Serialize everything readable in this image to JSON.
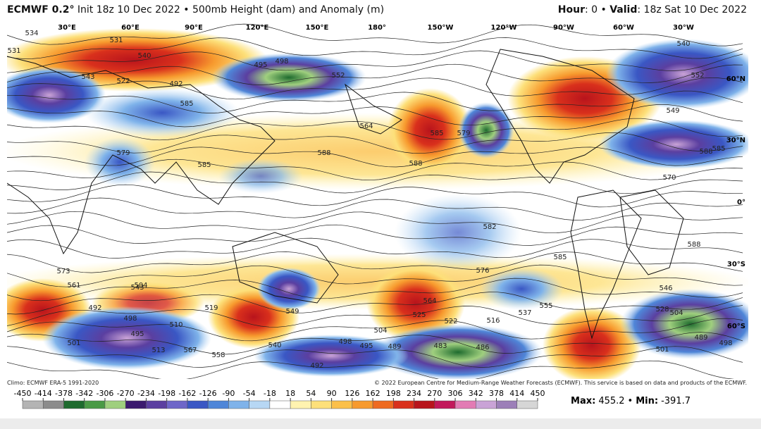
{
  "header": {
    "model": "ECMWF 0.2°",
    "description": "Init 18z 10 Dec 2022 • 500mb Height (dam) and Anomaly (m)",
    "hour_label": "Hour",
    "hour_value": ": 0 •",
    "valid_label": "Valid",
    "valid_value": ": 18z Sat 10 Dec 2022"
  },
  "map": {
    "longitude_labels": [
      "30°E",
      "60°E",
      "90°E",
      "120°E",
      "150°E",
      "180°",
      "150°W",
      "120°W",
      "90°W",
      "60°W",
      "30°W"
    ],
    "latitude_labels": [
      "60°N",
      "30°N",
      "0°",
      "30°S",
      "60°S"
    ],
    "contour_labels": [
      "534",
      "531",
      "540",
      "531",
      "543",
      "522",
      "492",
      "495",
      "498",
      "552",
      "585",
      "588",
      "564",
      "579",
      "585",
      "540",
      "552",
      "549",
      "564",
      "567",
      "570",
      "588",
      "585",
      "588",
      "585",
      "579",
      "573",
      "561",
      "543",
      "519",
      "504",
      "492",
      "498",
      "495",
      "501",
      "513",
      "510",
      "558",
      "540",
      "549",
      "525",
      "504",
      "498",
      "495",
      "489",
      "483",
      "486",
      "516",
      "522",
      "537",
      "555",
      "585",
      "576",
      "546",
      "528",
      "504",
      "489",
      "501",
      "498",
      "492",
      "582",
      "588"
    ]
  },
  "footer": {
    "climo": "Climo: ECMWF ERA-5 1991-2020",
    "copyright": "© 2022 European Centre for Medium-Range Weather Forecasts (ECMWF). This service is based on data and products of the ECMWF."
  },
  "colorbar": {
    "ticks": [
      -450,
      -414,
      -378,
      -342,
      -306,
      -270,
      -234,
      -198,
      -162,
      -126,
      -90,
      -54,
      -18,
      18,
      54,
      90,
      126,
      162,
      198,
      234,
      270,
      306,
      342,
      378,
      414,
      450
    ],
    "colors": [
      "#b4b4b4",
      "#8c8c8c",
      "#1e6b2e",
      "#4a9a46",
      "#9fcf7e",
      "#3b1a6e",
      "#5b3fa0",
      "#6e66c8",
      "#3a57c4",
      "#4f86d8",
      "#7fb3ea",
      "#b7d7f4",
      "#ffffff",
      "#fff3b0",
      "#fde07a",
      "#fbc04a",
      "#f79a2e",
      "#ee6a20",
      "#d9301c",
      "#b8141c",
      "#c2185b",
      "#e27bb4",
      "#c9a3d6",
      "#9c7fb8",
      "#d6d6d6"
    ]
  },
  "stats": {
    "max_label": "Max:",
    "max_value": 455.2,
    "separator": "•",
    "min_label": "Min:",
    "min_value": -391.7
  }
}
